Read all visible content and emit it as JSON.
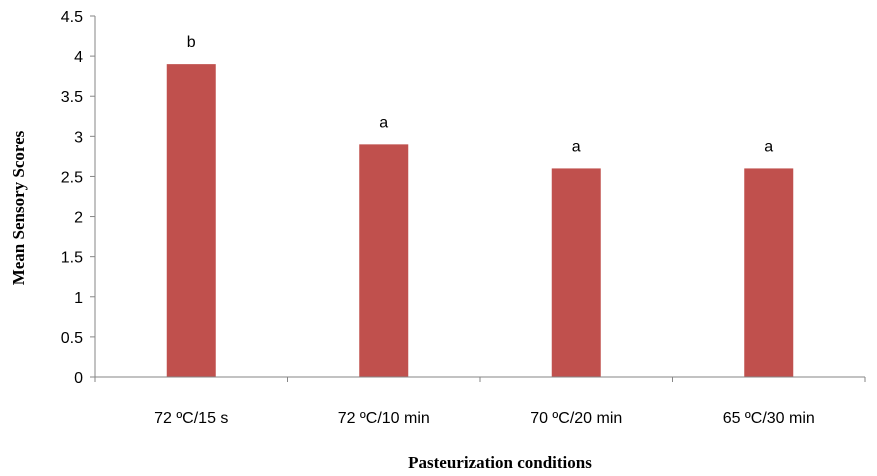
{
  "chart_data": {
    "type": "bar",
    "title": "",
    "xlabel": "Pasteurization conditions",
    "ylabel": "Mean Sensory Scores",
    "categories": [
      "72 ºC/15 s",
      "72 ºC/10 min",
      "70 ºC/20 min",
      "65 ºC/30 min"
    ],
    "values": [
      3.9,
      2.9,
      2.6,
      2.6
    ],
    "data_labels": [
      "b",
      "a",
      "a",
      "a"
    ],
    "ylim": [
      0,
      4.5
    ],
    "yticks": [
      "0",
      "0.5",
      "1",
      "1.5",
      "2",
      "2.5",
      "3",
      "3.5",
      "4",
      "4.5"
    ],
    "grid": false,
    "legend": "none",
    "bar_color": "#c0504d",
    "axis_color": "#868686"
  }
}
